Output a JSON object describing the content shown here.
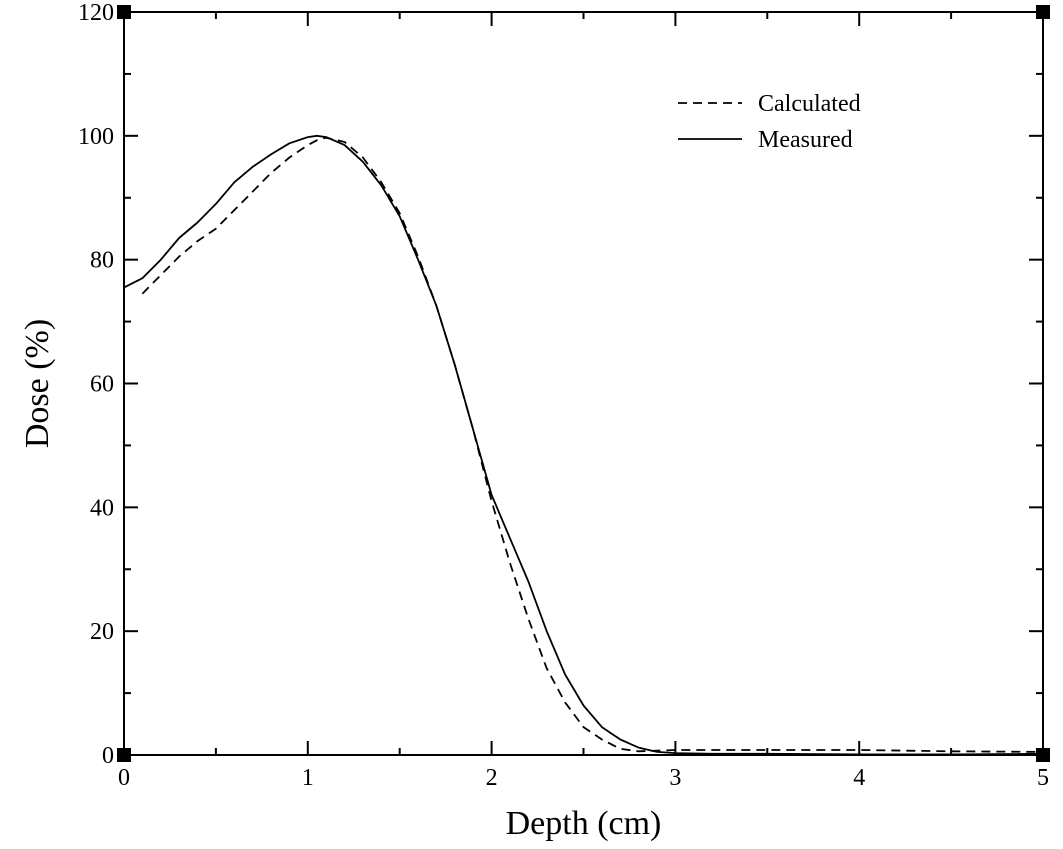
{
  "chart_data": {
    "type": "line",
    "title": "",
    "xlabel": "Depth (cm)",
    "ylabel": "Dose (%)",
    "xlim": [
      0,
      5
    ],
    "ylim": [
      0,
      120
    ],
    "x_ticks": [
      0,
      1,
      2,
      3,
      4,
      5
    ],
    "y_ticks": [
      0,
      20,
      40,
      60,
      80,
      100,
      120
    ],
    "x_tick_labels": [
      "0",
      "1",
      "2",
      "3",
      "4",
      "5"
    ],
    "y_tick_labels": [
      "0",
      "20",
      "40",
      "60",
      "80",
      "100",
      "120"
    ],
    "grid": false,
    "legend": {
      "position": "top-right"
    },
    "series": [
      {
        "name": "Calculated",
        "style": "dashed",
        "color": "#000000",
        "x": [
          0.1,
          0.2,
          0.3,
          0.4,
          0.5,
          0.6,
          0.7,
          0.8,
          0.9,
          1.0,
          1.05,
          1.1,
          1.2,
          1.3,
          1.4,
          1.5,
          1.6,
          1.7,
          1.8,
          1.9,
          2.0,
          2.05,
          2.1,
          2.2,
          2.3,
          2.4,
          2.5,
          2.6,
          2.7,
          2.8,
          2.9,
          3.0,
          3.5,
          4.0,
          4.5,
          5.0
        ],
        "y": [
          74.5,
          77.5,
          80.5,
          83.0,
          85.0,
          88.0,
          91.0,
          94.0,
          96.5,
          98.5,
          99.3,
          99.7,
          99.0,
          96.5,
          92.5,
          87.5,
          80.5,
          72.5,
          63.0,
          52.5,
          41.0,
          36.0,
          31.0,
          22.0,
          14.0,
          8.5,
          4.5,
          2.5,
          1.0,
          0.6,
          0.7,
          0.8,
          0.8,
          0.8,
          0.6,
          0.5
        ]
      },
      {
        "name": "Measured",
        "style": "solid",
        "color": "#000000",
        "x": [
          0.0,
          0.1,
          0.2,
          0.3,
          0.4,
          0.5,
          0.6,
          0.7,
          0.8,
          0.9,
          1.0,
          1.05,
          1.1,
          1.2,
          1.3,
          1.4,
          1.5,
          1.6,
          1.7,
          1.8,
          1.9,
          2.0,
          2.05,
          2.1,
          2.2,
          2.3,
          2.4,
          2.5,
          2.6,
          2.7,
          2.8,
          2.9,
          3.0,
          3.2,
          3.5,
          4.0,
          4.5,
          5.0
        ],
        "y": [
          75.5,
          77.0,
          80.0,
          83.5,
          86.0,
          89.0,
          92.5,
          95.0,
          97.0,
          98.8,
          99.8,
          100.0,
          99.8,
          98.5,
          95.8,
          92.0,
          87.0,
          80.0,
          72.5,
          63.0,
          52.5,
          42.0,
          38.5,
          35.0,
          28.0,
          20.0,
          13.0,
          8.0,
          4.5,
          2.5,
          1.2,
          0.5,
          0.3,
          0.2,
          0.2,
          0.1,
          0.1,
          0.2
        ]
      }
    ]
  }
}
